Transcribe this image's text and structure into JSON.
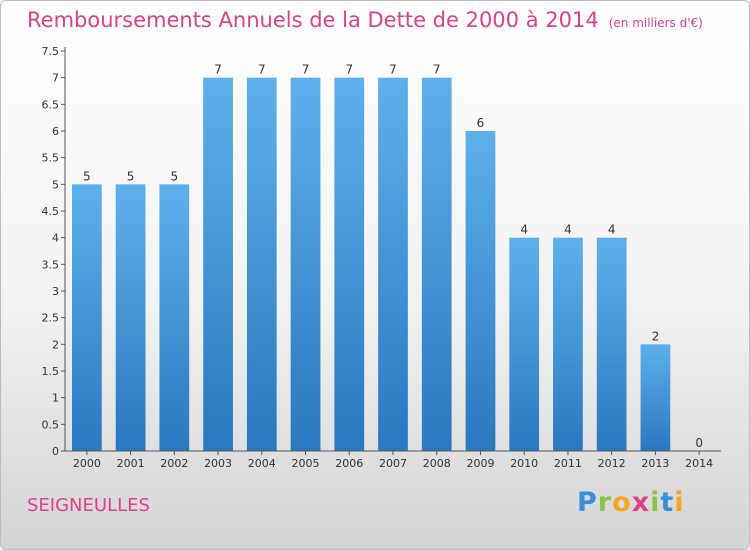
{
  "title": "Remboursements Annuels de la Dette de 2000 à 2014",
  "unit": "(en milliers d'€)",
  "commune": "SEIGNEULLES",
  "logo": {
    "letters": [
      {
        "ch": "P",
        "color": "#3b8fd9"
      },
      {
        "ch": "r",
        "color": "#8bc34a"
      },
      {
        "ch": "o",
        "color": "#f5a623"
      },
      {
        "ch": "x",
        "color": "#e0408a"
      },
      {
        "ch": "i",
        "color": "#8bc34a"
      },
      {
        "ch": "t",
        "color": "#3b8fd9"
      },
      {
        "ch": "i",
        "color": "#f5a623"
      }
    ]
  },
  "colors": {
    "bar_top": "#5eb0ec",
    "bar_bottom": "#2a78bf",
    "accent": "#e0408a"
  },
  "chart_data": {
    "type": "bar",
    "title": "Remboursements Annuels de la Dette de 2000 à 2014",
    "xlabel": "",
    "ylabel": "",
    "categories": [
      "2000",
      "2001",
      "2002",
      "2003",
      "2004",
      "2005",
      "2006",
      "2007",
      "2008",
      "2009",
      "2010",
      "2011",
      "2012",
      "2013",
      "2014"
    ],
    "values": [
      5,
      5,
      5,
      7,
      7,
      7,
      7,
      7,
      7,
      6,
      4,
      4,
      4,
      2,
      0
    ],
    "value_labels": [
      "5",
      "5",
      "5",
      "7",
      "7",
      "7",
      "7",
      "7",
      "7",
      "6",
      "4",
      "4",
      "4",
      "2",
      "0"
    ],
    "ylim": [
      0,
      7.5
    ],
    "yticks": [
      0,
      0.5,
      1,
      1.5,
      2,
      2.5,
      3,
      3.5,
      4,
      4.5,
      5,
      5.5,
      6,
      6.5,
      7,
      7.5
    ],
    "ytick_labels": [
      "0",
      "0.5",
      "1",
      "1.5",
      "2",
      "2.5",
      "3",
      "3.5",
      "4",
      "4.5",
      "5",
      "5.5",
      "6",
      "6.5",
      "7",
      "7.5"
    ],
    "grid": false,
    "legend": "none"
  }
}
